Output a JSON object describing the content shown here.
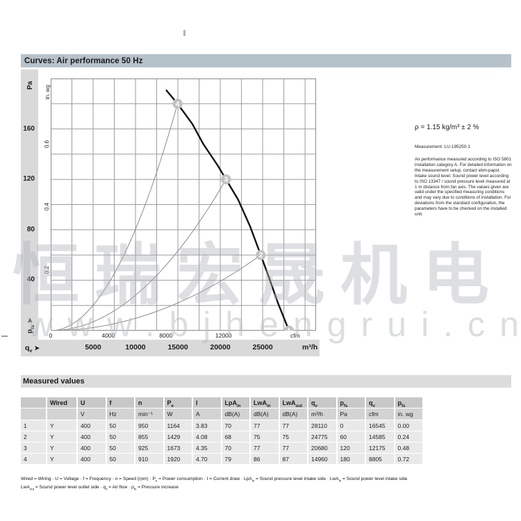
{
  "page": {
    "header_title": "Curves: Air performance 50 Hz",
    "rho_line": "ρ = 1.15 kg/m³ ± 2 %",
    "measurement_line": "Measurement: LU-195250-1",
    "info_paragraph": "Air performance measured according to ISO 5801 installation category A. For detailed information on the measurement setup, contact ebm-papst. Intake sound level: Sound power level according to ISO 13347 / sound pressure level measured at 1 m distance from fan axis. The values given are valid under the specified measuring conditions and may vary due to conditions of installation. For deviations from the standard configuration, the parameters have to be checked on the installed unit.",
    "watermark_cn": "恒瑞宏晟机电",
    "watermark_url": "www.bjhengrui.cn"
  },
  "colors": {
    "header_bar": "#b6c2ca",
    "gray_band": "#d9d9d9",
    "table_header": "#c8c8c8",
    "table_units": "#d3d3d3",
    "table_data": "#e9e9e9",
    "operating_point": "#c2c2c2"
  },
  "axis": {
    "pa": "Pa",
    "inwg": "in. wg",
    "cfm_unit": "cfm",
    "m3h_unit": "m³/h",
    "pfs_label": [
      {
        "t": "p"
      },
      {
        "s": "fs"
      },
      {
        "t": " "
      },
      {
        "t": "➤"
      }
    ],
    "qv_label": [
      {
        "t": "q"
      },
      {
        "s": "v"
      },
      {
        "t": "  "
      },
      {
        "t": "➤"
      }
    ]
  },
  "chart_data": {
    "type": "line",
    "title": "Air performance 50 Hz",
    "x_axis": {
      "primary_unit": "m³/h",
      "secondary_unit": "cfm",
      "m3h_ticks": [
        5000,
        10000,
        15000,
        20000,
        25000
      ],
      "cfm_ticks": [
        0,
        4000,
        8000,
        12000
      ],
      "x_max_m3h": 31300,
      "grid_step_m3h": 2500,
      "cfm_per_m3h": 0.5886
    },
    "y_axis": {
      "primary_unit": "Pa",
      "secondary_unit": "in. wg",
      "pa_ticks": [
        40,
        80,
        120,
        160
      ],
      "inwg_ticks": [
        0.2,
        0.4,
        0.6
      ],
      "y_max_pa": 200,
      "grid_step_pa": 20,
      "pa_per_inwg": 248.84
    },
    "fan_curve_points_m3h_pa": [
      [
        13600,
        191
      ],
      [
        14960,
        180
      ],
      [
        16700,
        164
      ],
      [
        18000,
        148
      ],
      [
        19700,
        131
      ],
      [
        20680,
        120
      ],
      [
        22100,
        104
      ],
      [
        23500,
        83
      ],
      [
        24775,
        60
      ],
      [
        25700,
        43
      ],
      [
        26800,
        22
      ],
      [
        28110,
        0
      ]
    ],
    "system_curves_end_m3h_pa": [
      {
        "end": [
          14960,
          180
        ]
      },
      {
        "end": [
          20680,
          120
        ]
      },
      {
        "end": [
          24775,
          60
        ]
      }
    ],
    "operating_points": [
      {
        "n": "1",
        "q_m3h": 28110,
        "p_pa": 0
      },
      {
        "n": "2",
        "q_m3h": 24775,
        "p_pa": 60
      },
      {
        "n": "3",
        "q_m3h": 20680,
        "p_pa": 120
      },
      {
        "n": "4",
        "q_m3h": 14960,
        "p_pa": 180
      }
    ]
  },
  "table": {
    "title": "Measured values",
    "columns": [
      {
        "main": "",
        "sub": ""
      },
      {
        "main": "Wired",
        "sub": ""
      },
      {
        "main": "U",
        "sub": ""
      },
      {
        "main": "f",
        "sub": ""
      },
      {
        "main": "n",
        "sub": ""
      },
      {
        "main": "P",
        "sub": "e"
      },
      {
        "main": "I",
        "sub": ""
      },
      {
        "main": "LpA",
        "sub": "in"
      },
      {
        "main": "LwA",
        "sub": "in"
      },
      {
        "main": "LwA",
        "sub": "out"
      },
      {
        "main": "q",
        "sub": "v"
      },
      {
        "main": "p",
        "sub": "fs"
      },
      {
        "main": "q",
        "sub": "v"
      },
      {
        "main": "p",
        "sub": "fs"
      }
    ],
    "units": [
      "",
      "",
      "V",
      "Hz",
      "min⁻¹",
      "W",
      "A",
      "dB(A)",
      "dB(A)",
      "dB(A)",
      "m³/h",
      "Pa",
      "cfm",
      "in. wg"
    ],
    "rows": [
      [
        "1",
        "Y",
        "400",
        "50",
        "950",
        "1164",
        "3.83",
        "70",
        "77",
        "77",
        "28110",
        "0",
        "16545",
        "0.00"
      ],
      [
        "2",
        "Y",
        "400",
        "50",
        "855",
        "1429",
        "4.08",
        "68",
        "75",
        "75",
        "24775",
        "60",
        "14585",
        "0.24"
      ],
      [
        "3",
        "Y",
        "400",
        "50",
        "925",
        "1673",
        "4.35",
        "70",
        "77",
        "77",
        "20680",
        "120",
        "12175",
        "0.48"
      ],
      [
        "4",
        "Y",
        "400",
        "50",
        "910",
        "1920",
        "4.70",
        "79",
        "86",
        "87",
        "14960",
        "180",
        "8805",
        "0.72"
      ]
    ]
  },
  "footnotes": [
    [
      {
        "t": "Wired = Wiring · U = Voltage · f = Frequency · n = Speed (rpm) · P"
      },
      {
        "s": "e"
      },
      {
        "t": " = Power consumption · I = Current draw · LpA"
      },
      {
        "s": "in"
      },
      {
        "t": " = Sound pressure level intake side · LwA"
      },
      {
        "s": "in"
      },
      {
        "t": " = Sound power level intake side"
      }
    ],
    [
      {
        "t": "LwA"
      },
      {
        "s": "out"
      },
      {
        "t": " = Sound power level outlet side · q"
      },
      {
        "s": "v"
      },
      {
        "t": " = Air flow · p"
      },
      {
        "s": "fs"
      },
      {
        "t": " = Pressure increase"
      }
    ]
  ]
}
